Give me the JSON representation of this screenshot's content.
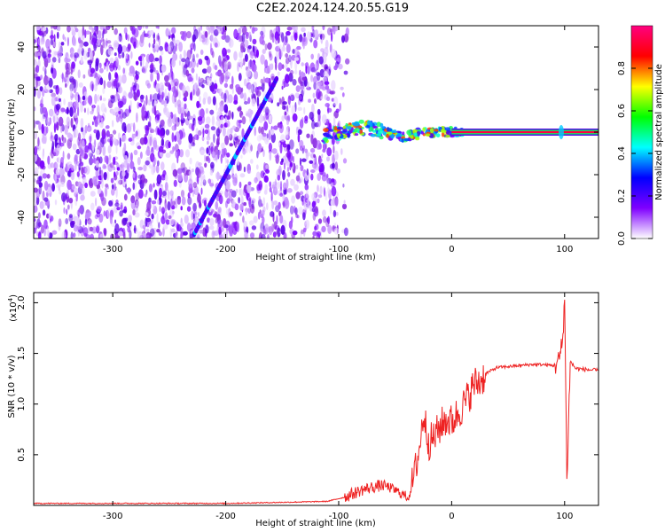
{
  "title": "C2E2.2024.124.20.55.G19",
  "chart_data": [
    {
      "type": "heatmap",
      "xlabel": "Height of straight line (km)",
      "ylabel": "Frequency (Hz)",
      "xlim": [
        -370,
        130
      ],
      "ylim": [
        -50,
        50
      ],
      "xticks": [
        -300,
        -200,
        -100,
        0,
        100
      ],
      "yticks": [
        -40,
        -20,
        0,
        20,
        40
      ],
      "colorbar": {
        "label": "Normalized spectral amplitude",
        "range": [
          0,
          1
        ],
        "ticks": [
          0.0,
          0.2,
          0.4,
          0.6,
          0.8
        ],
        "colormap": [
          "#ffffff",
          "#7f00ff",
          "#0000ff",
          "#00ffff",
          "#00ff00",
          "#ffff00",
          "#ff0000",
          "#ff0080"
        ]
      },
      "features": {
        "noise_region_x": [
          -370,
          -100
        ],
        "diagonal_line": {
          "x": [
            -228,
            -155
          ],
          "y": [
            -48,
            25
          ]
        },
        "carrier_line_y": 0,
        "spike_x": 97
      }
    },
    {
      "type": "line",
      "xlabel": "Height of straight line (km)",
      "ylabel": "SNR (10 * v/v)",
      "yscale_label": "(x10",
      "yscale_exp": "4",
      "xlim": [
        -370,
        130
      ],
      "ylim": [
        0,
        2.1
      ],
      "xticks": [
        -300,
        -200,
        -100,
        0,
        100
      ],
      "yticks": [
        0.5,
        1.0,
        1.5,
        2.0
      ],
      "color": "#ee2222",
      "series": [
        {
          "x": [
            -370,
            -300,
            -200,
            -150,
            -110,
            -95,
            -80,
            -70,
            -60,
            -50,
            -42,
            -38,
            -33,
            -28,
            -25,
            -20,
            -15,
            -10,
            -5,
            0,
            5,
            10,
            15,
            20,
            25,
            30,
            35,
            40,
            50,
            60,
            70,
            80,
            90,
            95,
            98,
            100,
            102,
            105,
            110,
            120,
            130
          ],
          "y": [
            0.02,
            0.02,
            0.02,
            0.03,
            0.04,
            0.08,
            0.15,
            0.18,
            0.2,
            0.15,
            0.1,
            0.08,
            0.3,
            0.6,
            0.9,
            0.62,
            0.68,
            0.78,
            0.85,
            0.82,
            0.9,
            0.98,
            1.08,
            1.2,
            1.22,
            1.3,
            1.33,
            1.36,
            1.37,
            1.38,
            1.39,
            1.39,
            1.38,
            1.42,
            1.6,
            2.05,
            0.25,
            1.42,
            1.35,
            1.34,
            1.33
          ]
        }
      ]
    }
  ]
}
